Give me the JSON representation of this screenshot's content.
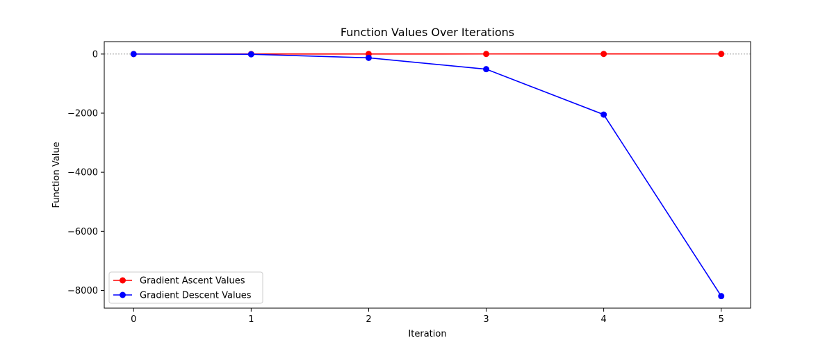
{
  "chart_data": {
    "type": "line",
    "title": "Function Values Over Iterations",
    "xlabel": "Iteration",
    "ylabel": "Function Value",
    "x": [
      0,
      1,
      2,
      3,
      4,
      5
    ],
    "xlim": [
      -0.25,
      5.25
    ],
    "ylim": [
      -8600,
      420
    ],
    "xticks": [
      0,
      1,
      2,
      3,
      4,
      5
    ],
    "yticks": [
      0,
      -2000,
      -4000,
      -6000,
      -8000
    ],
    "ytick_labels": [
      "0",
      "−2000",
      "−4000",
      "−6000",
      "−8000"
    ],
    "zero_line": true,
    "legend_position": "lower-left",
    "series": [
      {
        "name": "Gradient Ascent Values",
        "color": "#ff0000",
        "values": [
          0,
          1,
          2,
          3,
          4,
          5
        ]
      },
      {
        "name": "Gradient Descent Values",
        "color": "#0000ff",
        "values": [
          0,
          -8,
          -128,
          -512,
          -2048,
          -8192
        ]
      }
    ]
  }
}
